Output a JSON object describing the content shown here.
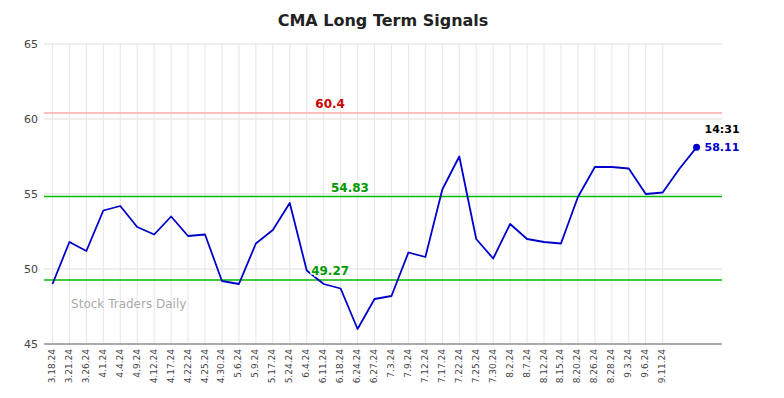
{
  "chart_data": {
    "type": "line",
    "title": "CMA Long Term Signals",
    "categories": [
      "3.18.24",
      "3.21.24",
      "3.26.24",
      "4.1.24",
      "4.4.24",
      "4.9.24",
      "4.12.24",
      "4.17.24",
      "4.22.24",
      "4.25.24",
      "4.30.24",
      "5.6.24",
      "5.9.24",
      "5.17.24",
      "5.24.24",
      "6.4.24",
      "6.11.24",
      "6.18.24",
      "6.24.24",
      "6.27.24",
      "7.3.24",
      "7.9.24",
      "7.12.24",
      "7.17.24",
      "7.22.24",
      "7.25.24",
      "7.30.24",
      "8.2.24",
      "8.7.24",
      "8.12.24",
      "8.15.24",
      "8.20.24",
      "8.26.24",
      "8.28.24",
      "9.3.24",
      "9.6.24",
      "9.11.24",
      null,
      null
    ],
    "values": [
      49.0,
      51.8,
      51.2,
      53.9,
      54.2,
      52.8,
      52.3,
      53.5,
      52.2,
      52.3,
      49.2,
      49.0,
      51.7,
      52.6,
      54.4,
      49.9,
      49.0,
      48.7,
      46.0,
      48.0,
      48.2,
      51.1,
      50.8,
      55.3,
      57.5,
      52.0,
      50.7,
      53.0,
      52.0,
      51.8,
      51.7,
      54.8,
      56.8,
      56.8,
      56.7,
      55.0,
      55.1,
      56.7,
      58.11
    ],
    "color": "#0000cc",
    "ylim": [
      45,
      65
    ],
    "yticks": [
      45,
      50,
      55,
      60,
      65
    ],
    "grid": true,
    "reference_lines": [
      {
        "value": 60.4,
        "label": "60.4",
        "color": "#ffaaaa",
        "label_color": "#cc0000"
      },
      {
        "value": 54.83,
        "label": "54.83",
        "color": "#00bb00",
        "label_color": "#009900"
      },
      {
        "value": 49.27,
        "label": "49.27",
        "color": "#00bb00",
        "label_color": "#009900"
      }
    ],
    "annotations": [
      {
        "text": "14:31",
        "color": "#000000"
      },
      {
        "text": "58.11",
        "color": "#0000cc"
      }
    ],
    "watermark": "Stock Traders Daily"
  }
}
